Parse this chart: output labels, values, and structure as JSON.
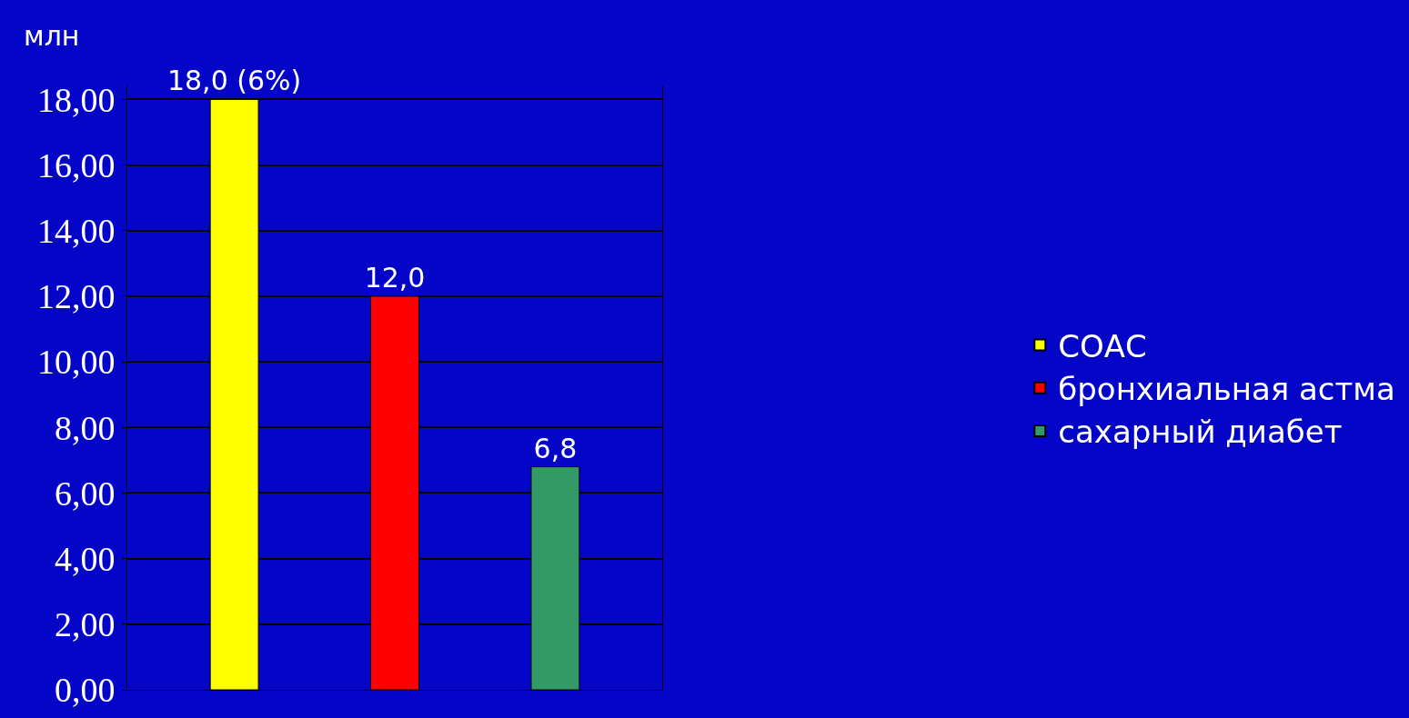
{
  "chart_data": {
    "type": "bar",
    "ylabel": "млн",
    "categories": [
      null
    ],
    "series": [
      {
        "name": "СОАС",
        "color": "#ffff00",
        "values": [
          18.0
        ],
        "value_labels": [
          "18,0 (6%)"
        ]
      },
      {
        "name": "бронхиальная астма",
        "color": "#ff0000",
        "values": [
          12.0
        ],
        "value_labels": [
          "12,0"
        ]
      },
      {
        "name": "сахарный диабет",
        "color": "#339966",
        "values": [
          6.8
        ],
        "value_labels": [
          "6,8"
        ]
      }
    ],
    "ylim": [
      0,
      18.4
    ],
    "yticks": [
      {
        "value": 0,
        "label": "0,00"
      },
      {
        "value": 2,
        "label": "2,00"
      },
      {
        "value": 4,
        "label": "4,00"
      },
      {
        "value": 6,
        "label": "6,00"
      },
      {
        "value": 8,
        "label": "8,00"
      },
      {
        "value": 10,
        "label": "10,00"
      },
      {
        "value": 12,
        "label": "12,00"
      },
      {
        "value": 14,
        "label": "14,00"
      },
      {
        "value": 16,
        "label": "16,00"
      },
      {
        "value": 18,
        "label": "18,00"
      }
    ],
    "grid": "y",
    "legend": "right"
  }
}
